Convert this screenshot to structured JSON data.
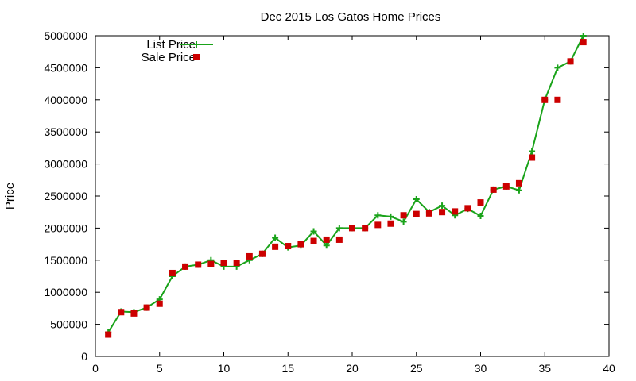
{
  "chart_data": {
    "type": "line",
    "title": "Dec 2015 Los Gatos Home Prices",
    "xlabel": "",
    "ylabel": "Price",
    "xlim": [
      0,
      40
    ],
    "ylim": [
      0,
      5000000
    ],
    "x_ticks": [
      "0",
      "5",
      "10",
      "15",
      "20",
      "25",
      "30",
      "35",
      "40"
    ],
    "y_ticks": [
      "0",
      "500000",
      "1000000",
      "1500000",
      "2000000",
      "2500000",
      "3000000",
      "3500000",
      "4000000",
      "4500000",
      "5000000"
    ],
    "grid": false,
    "legend_position": "top-left",
    "colors": {
      "list_price": "#1aa31a",
      "sale_price": "#cc0000"
    },
    "series": [
      {
        "name": "List Price",
        "style": "line with plus markers",
        "x": [
          1,
          2,
          3,
          4,
          5,
          6,
          7,
          8,
          9,
          10,
          11,
          12,
          13,
          14,
          15,
          16,
          17,
          18,
          19,
          20,
          21,
          22,
          23,
          24,
          25,
          26,
          27,
          28,
          29,
          30,
          31,
          32,
          33,
          34,
          35,
          36,
          37,
          38
        ],
        "y": [
          375000,
          700000,
          690000,
          760000,
          890000,
          1250000,
          1400000,
          1430000,
          1500000,
          1400000,
          1400000,
          1500000,
          1600000,
          1850000,
          1700000,
          1730000,
          1950000,
          1730000,
          2000000,
          2000000,
          2000000,
          2200000,
          2180000,
          2100000,
          2450000,
          2250000,
          2350000,
          2200000,
          2300000,
          2190000,
          2600000,
          2650000,
          2590000,
          3200000,
          4000000,
          4500000,
          4600000,
          5000000
        ]
      },
      {
        "name": "Sale Price",
        "style": "square markers",
        "x": [
          1,
          2,
          3,
          4,
          5,
          6,
          7,
          8,
          9,
          10,
          11,
          12,
          13,
          14,
          15,
          16,
          17,
          18,
          19,
          20,
          21,
          22,
          23,
          24,
          25,
          26,
          27,
          28,
          29,
          30,
          31,
          32,
          33,
          34,
          35,
          36,
          37,
          38
        ],
        "y": [
          340000,
          690000,
          670000,
          760000,
          820000,
          1300000,
          1400000,
          1430000,
          1440000,
          1460000,
          1460000,
          1560000,
          1600000,
          1710000,
          1720000,
          1750000,
          1800000,
          1820000,
          1820000,
          2000000,
          2000000,
          2050000,
          2070000,
          2200000,
          2220000,
          2230000,
          2250000,
          2260000,
          2310000,
          2400000,
          2600000,
          2650000,
          2700000,
          3100000,
          4000000,
          4000000,
          4600000,
          4900000
        ]
      }
    ]
  }
}
